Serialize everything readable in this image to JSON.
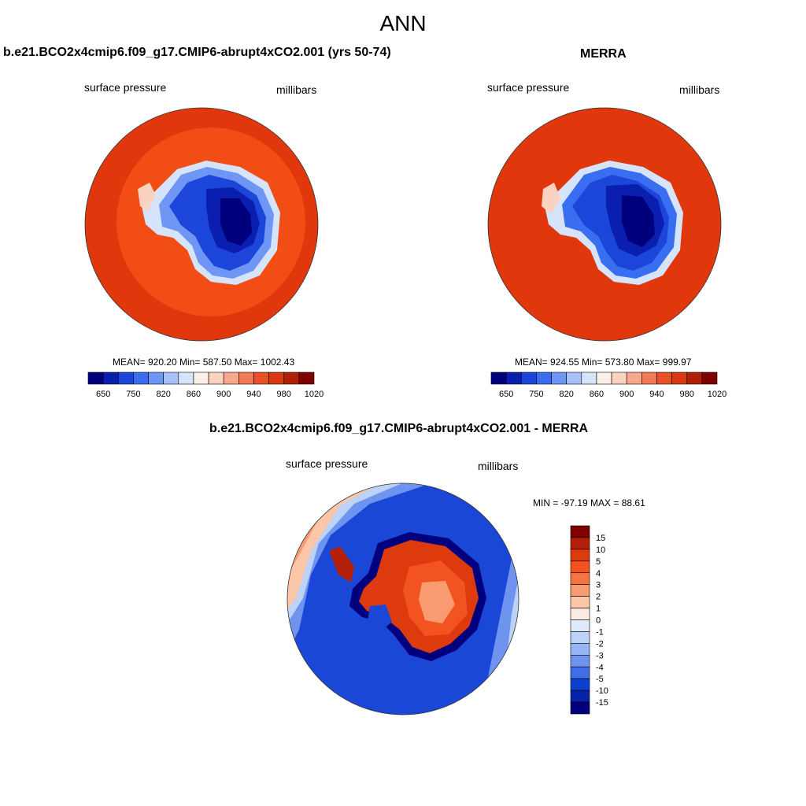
{
  "figure": {
    "title": "ANN"
  },
  "panels": [
    {
      "title": "b.e21.BCO2x4cmip6.f09_g17.CMIP6-abrupt4xCO2.001 (yrs 50-74)",
      "left_label": "surface pressure",
      "right_label": "millibars",
      "stats": "MEAN= 920.20  Min= 587.50  Max= 1002.43",
      "colorbar_ticks": [
        "650",
        "750",
        "820",
        "860",
        "900",
        "940",
        "980",
        "1020"
      ]
    },
    {
      "title": "MERRA",
      "left_label": "surface pressure",
      "right_label": "millibars",
      "stats": "MEAN= 924.55  Min= 573.80  Max= 999.97",
      "colorbar_ticks": [
        "650",
        "750",
        "820",
        "860",
        "900",
        "940",
        "980",
        "1020"
      ]
    },
    {
      "title": "b.e21.BCO2x4cmip6.f09_g17.CMIP6-abrupt4xCO2.001 - MERRA",
      "left_label": "surface pressure",
      "right_label": "millibars",
      "stats": "MIN = -97.19 MAX =  88.61",
      "colorbar_ticks": [
        "15",
        "10",
        "5",
        "4",
        "3",
        "2",
        "1",
        "0",
        "-1",
        "-2",
        "-3",
        "-4",
        "-5",
        "-10",
        "-15"
      ]
    }
  ],
  "colors": {
    "abs_scale": [
      "#00007f",
      "#0a1fb0",
      "#1b46d9",
      "#3a6ef0",
      "#7096f5",
      "#a7c1f7",
      "#d6e4fb",
      "#fdeee6",
      "#fbd2bf",
      "#f7a88a",
      "#f27a55",
      "#eb5128",
      "#d63a10",
      "#b02008",
      "#7f0000"
    ],
    "diff_scale": [
      "#7f0000",
      "#b31f08",
      "#dd3a0e",
      "#f25320",
      "#f67444",
      "#f99b70",
      "#fcc6a8",
      "#fdeae0",
      "#dfeafb",
      "#bcd2f7",
      "#97b6f4",
      "#6e94ef",
      "#3f6ee6",
      "#0e3fcf",
      "#0522a8",
      "#00007f"
    ],
    "ocean_model": "#e0380c",
    "ocean_model_inner": "#f24d14",
    "ocean_merra": "#e0380c",
    "diff_ocean": "#1a47d6"
  }
}
